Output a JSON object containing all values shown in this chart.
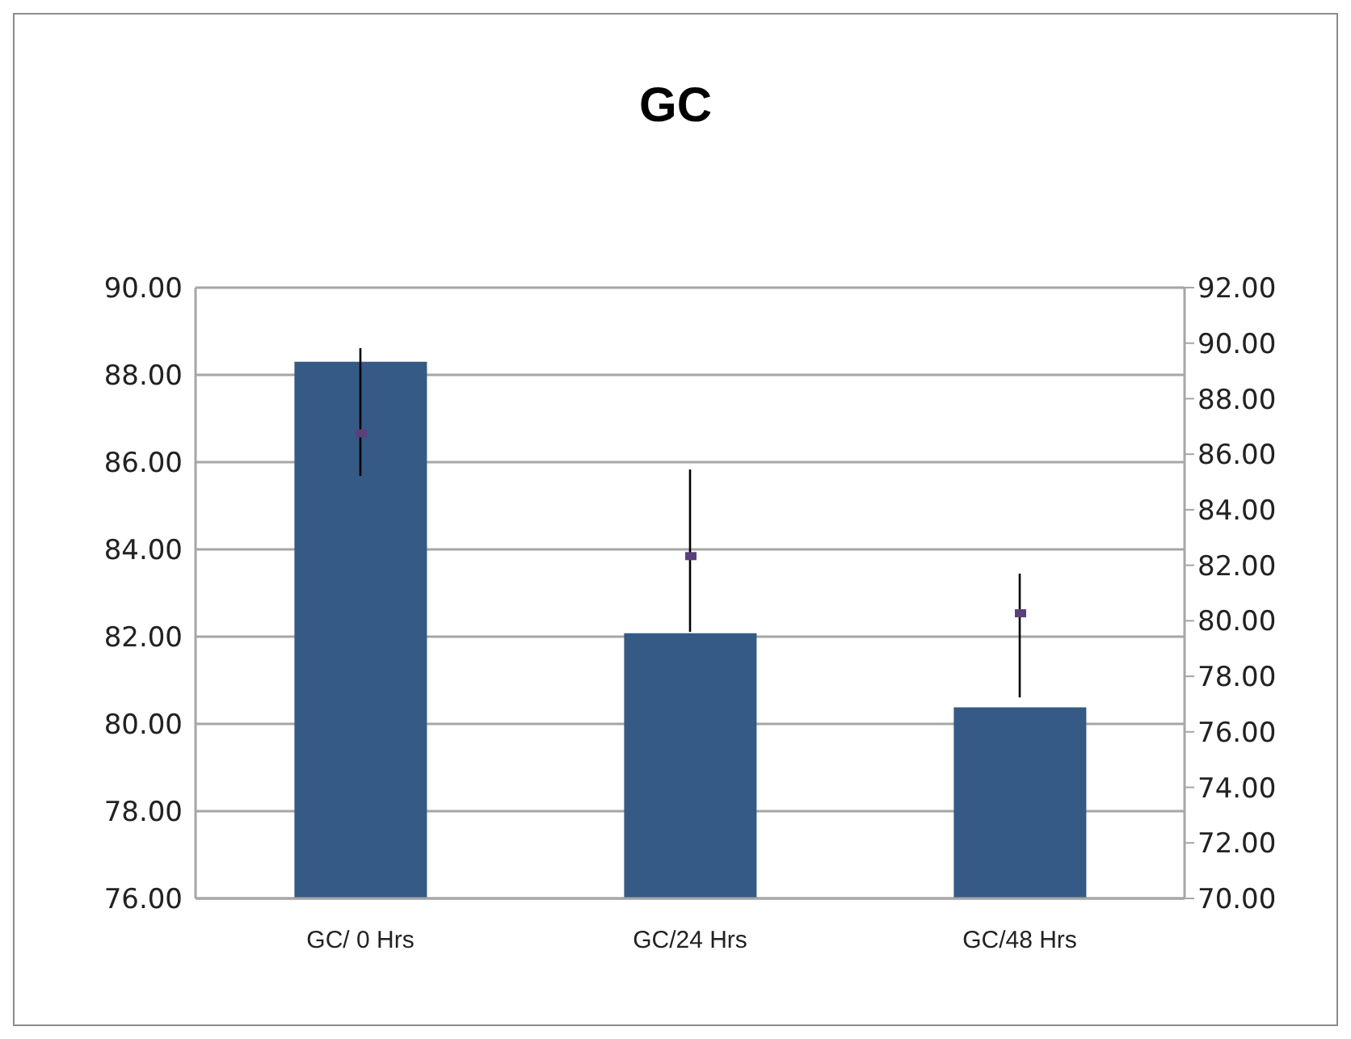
{
  "chart_data": {
    "type": "bar",
    "title": "GC",
    "categories": [
      "GC/ 0 Hrs",
      "GC/24 Hrs",
      "GC/48 Hrs"
    ],
    "series": [
      {
        "color": "#355a86",
        "values": [
          88.3,
          82.08,
          80.38
        ]
      },
      {
        "type": "scatter",
        "axis": "y2",
        "color": "#5b3f7a",
        "marker": "square",
        "values": [
          86.75,
          82.33,
          80.27
        ],
        "errors": [
          [
            85.22,
            89.82
          ],
          [
            79.6,
            85.45
          ],
          [
            77.24,
            81.7
          ]
        ]
      }
    ],
    "ylim": [
      76,
      90
    ],
    "yticks": [
      {
        "value": 76,
        "label": "76.00"
      },
      {
        "value": 78,
        "label": "78.00"
      },
      {
        "value": 80,
        "label": "80.00"
      },
      {
        "value": 82,
        "label": "82.00"
      },
      {
        "value": 84,
        "label": "84.00"
      },
      {
        "value": 86,
        "label": "86.00"
      },
      {
        "value": 88,
        "label": "88.00"
      },
      {
        "value": 90,
        "label": "90.00"
      }
    ],
    "y2lim": [
      70,
      92
    ],
    "y2ticks": [
      {
        "value": 70,
        "label": "70.00"
      },
      {
        "value": 72,
        "label": "72.00"
      },
      {
        "value": 74,
        "label": "74.00"
      },
      {
        "value": 76,
        "label": "76.00"
      },
      {
        "value": 78,
        "label": "78.00"
      },
      {
        "value": 80,
        "label": "80.00"
      },
      {
        "value": 82,
        "label": "82.00"
      },
      {
        "value": 84,
        "label": "84.00"
      },
      {
        "value": 86,
        "label": "86.00"
      },
      {
        "value": 88,
        "label": "88.00"
      },
      {
        "value": 90,
        "label": "90.00"
      },
      {
        "value": 92,
        "label": "92.00"
      }
    ],
    "grid": "y",
    "legend": false
  }
}
